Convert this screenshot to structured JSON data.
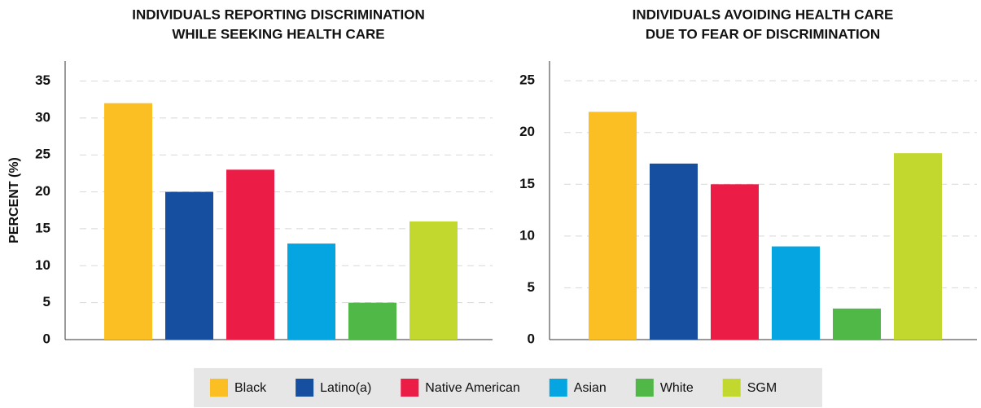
{
  "legend": {
    "names": [
      "Black",
      "Latino(a)",
      "Native American",
      "Asian",
      "White",
      "SGM"
    ],
    "colors": [
      "#fbbf24",
      "#164ea0",
      "#eb1c46",
      "#05a5e2",
      "#4fb847",
      "#c3d82e"
    ]
  },
  "chart_data": [
    {
      "type": "bar",
      "title": [
        "INDIVIDUALS REPORTING DISCRIMINATION",
        "WHILE SEEKING HEALTH CARE"
      ],
      "ylabel": "PERCENT (%)",
      "values": [
        32,
        20,
        23,
        13,
        5,
        16
      ],
      "ylim": [
        0,
        37.7
      ],
      "yticks": [
        0,
        5,
        10,
        15,
        20,
        25,
        30,
        35
      ],
      "grid": true
    },
    {
      "type": "bar",
      "title": [
        "INDIVIDUALS AVOIDING HEALTH CARE",
        "DUE TO FEAR OF DISCRIMINATION"
      ],
      "values": [
        22,
        17,
        15,
        9,
        3,
        18
      ],
      "ylim": [
        0,
        26.9
      ],
      "yticks": [
        0,
        5,
        10,
        15,
        20,
        25
      ],
      "grid": true
    }
  ]
}
